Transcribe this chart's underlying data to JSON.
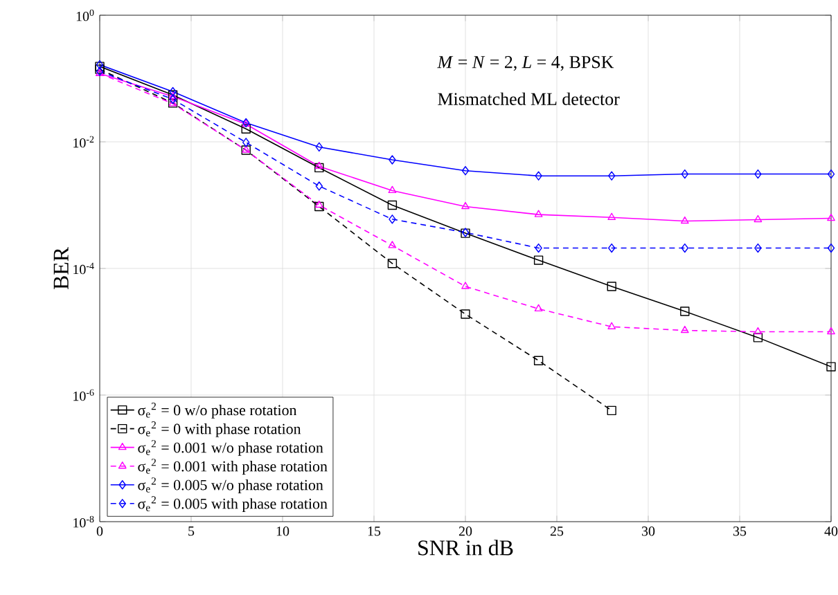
{
  "chart_data": {
    "type": "line",
    "xlabel": "SNR in dB",
    "ylabel": "BER",
    "annotations": [
      "*M* = *N* = 2, *L* = 4, BPSK",
      "Mismatched ML detector"
    ],
    "x": [
      0,
      4,
      8,
      12,
      16,
      20,
      24,
      28,
      32,
      36,
      40
    ],
    "xlim": [
      0,
      40
    ],
    "xticks": [
      0,
      5,
      10,
      15,
      20,
      25,
      30,
      35,
      40
    ],
    "ylim": [
      1e-08,
      1
    ],
    "yticks": [
      {
        "value": 1e-08,
        "label": "10$^{-8}$"
      },
      {
        "value": 1e-06,
        "label": "10$^{-6}$"
      },
      {
        "value": 0.0001,
        "label": "10$^{-4}$"
      },
      {
        "value": 0.01,
        "label": "10$^{-2}$"
      },
      {
        "value": 1,
        "label": "10$^{0}$"
      }
    ],
    "log": "y",
    "grid": true,
    "legend": "bottom left",
    "series": [
      {
        "name": "σ$_{e}$$^{2}$ = 0 w/o phase rotation",
        "color": "#000000",
        "marker": "square",
        "line_style": "solid",
        "values": [
          0.155,
          0.055,
          0.016,
          0.0039,
          0.001,
          0.00036,
          0.000135,
          5.2e-05,
          2.1e-05,
          8.1e-06,
          2.8e-06
        ]
      },
      {
        "name": "σ$_{e}$$^{2}$ = 0 with phase rotation",
        "color": "#000000",
        "marker": "square",
        "line_style": "dashed",
        "values": [
          0.14,
          0.041,
          0.0074,
          0.00095,
          0.00012,
          1.9e-05,
          3.5e-06,
          5.7e-07,
          null,
          null,
          null
        ]
      },
      {
        "name": "σ$_{e}$$^{2}$ = 0.001 w/o phase rotation",
        "color": "#ff00ff",
        "marker": "triangle",
        "line_style": "solid",
        "values": [
          0.12,
          0.052,
          0.019,
          0.0041,
          0.0017,
          0.00095,
          0.00071,
          0.00064,
          0.00056,
          0.00059,
          0.00062
        ]
      },
      {
        "name": "σ$_{e}$$^{2}$ = 0.001 with phase rotation",
        "color": "#ff00ff",
        "marker": "triangle",
        "line_style": "dashed",
        "values": [
          0.12,
          0.04,
          0.0074,
          0.001,
          0.00023,
          5.2e-05,
          2.3e-05,
          1.2e-05,
          1.05e-05,
          1e-05,
          1e-05
        ]
      },
      {
        "name": "σ$_{e}$$^{2}$ = 0.005 w/o phase rotation",
        "color": "#0000ff",
        "marker": "diamond",
        "line_style": "solid",
        "values": [
          0.165,
          0.062,
          0.02,
          0.0083,
          0.0052,
          0.0035,
          0.0029,
          0.0029,
          0.0031,
          0.0031,
          0.0031
        ]
      },
      {
        "name": "σ$_{e}$$^{2}$ = 0.005 with phase rotation",
        "color": "#0000ff",
        "marker": "diamond",
        "line_style": "dashed",
        "values": [
          0.13,
          0.047,
          0.0098,
          0.002,
          0.0006,
          0.00037,
          0.00021,
          0.00021,
          0.00021,
          0.00021,
          0.00021
        ]
      }
    ]
  }
}
